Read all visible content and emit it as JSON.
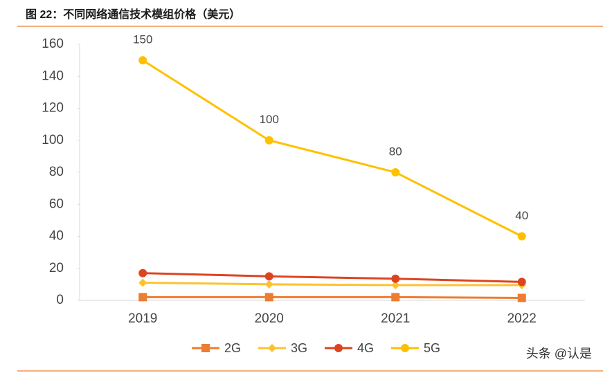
{
  "chart_data": {
    "type": "line",
    "title": "图 22：不同网络通信技术模组价格（美元）",
    "categories": [
      "2019",
      "2020",
      "2021",
      "2022"
    ],
    "series": [
      {
        "name": "2G",
        "color": "#ed7d31",
        "marker": "square",
        "values": [
          2,
          2,
          2,
          1.5
        ]
      },
      {
        "name": "3G",
        "color": "#fcc230",
        "marker": "diamond",
        "values": [
          11,
          10,
          9.5,
          9.5
        ]
      },
      {
        "name": "4G",
        "color": "#dc4420",
        "marker": "circle",
        "values": [
          17,
          15,
          13.5,
          11.5
        ]
      },
      {
        "name": "5G",
        "color": "#ffc000",
        "marker": "circle",
        "labels": true,
        "values": [
          150,
          100,
          80,
          40
        ]
      }
    ],
    "ylim": [
      0,
      160
    ],
    "yticks": [
      0,
      20,
      40,
      60,
      80,
      100,
      120,
      140,
      160
    ],
    "legend": "bottom",
    "watermark": "头条 @认是"
  }
}
